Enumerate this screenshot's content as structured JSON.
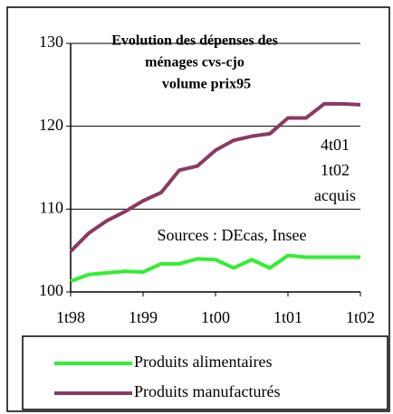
{
  "chart_data": {
    "type": "line",
    "title": [
      "Evolution des dépenses des",
      "ménages cvs-cjo",
      "volume prix95"
    ],
    "annotations": [
      "4t01",
      "1t02",
      "acquis",
      "Sources : DEcas, Insee"
    ],
    "categories": [
      "1t98",
      null,
      null,
      null,
      "1t99",
      null,
      null,
      null,
      "1t00",
      null,
      null,
      null,
      "1t01",
      null,
      null,
      null,
      "1t02"
    ],
    "series": [
      {
        "name": "Produits alimentaires",
        "color": "#33ee33",
        "values": [
          101.3,
          102.1,
          102.3,
          102.5,
          102.4,
          103.4,
          103.4,
          104.0,
          103.9,
          102.9,
          103.9,
          102.9,
          104.4,
          104.2,
          104.2,
          104.2,
          104.2
        ]
      },
      {
        "name": "Produits manufacturés",
        "color": "#8b3a62",
        "values": [
          104.9,
          107.1,
          108.6,
          109.7,
          111.0,
          112.0,
          114.7,
          115.2,
          117.1,
          118.3,
          118.8,
          119.1,
          121.0,
          121.0,
          122.7,
          122.7,
          122.6
        ]
      }
    ],
    "ylim": [
      100,
      130
    ],
    "yticks": [
      100,
      110,
      120,
      130
    ],
    "grid": true
  }
}
